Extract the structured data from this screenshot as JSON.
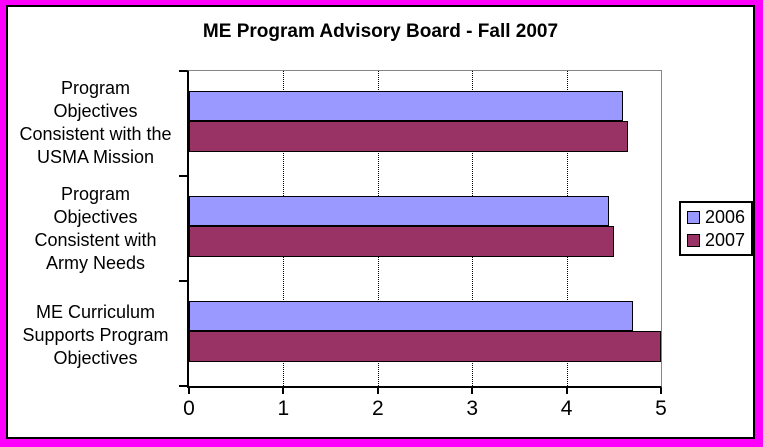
{
  "frame": {
    "border_color": "#FF00FF",
    "inner_border_color": "#000000",
    "background": "#FFFFFF"
  },
  "chart_data": {
    "type": "bar",
    "orientation": "horizontal",
    "title": "ME Program Advisory Board - Fall 2007",
    "categories": [
      "Program Objectives Consistent with the USMA Mission",
      "Program Objectives Consistent with Army Needs",
      "ME Curriculum Supports Program Objectives"
    ],
    "category_lines": [
      [
        "Program",
        "Objectives",
        "Consistent with the",
        "USMA Mission"
      ],
      [
        "Program",
        "Objectives",
        "Consistent with",
        "Army Needs"
      ],
      [
        "ME Curriculum",
        "Supports Program",
        "Objectives"
      ]
    ],
    "series": [
      {
        "name": "2006",
        "color": "#9999FF",
        "values": [
          4.6,
          4.45,
          4.7
        ]
      },
      {
        "name": "2007",
        "color": "#993366",
        "values": [
          4.65,
          4.5,
          5.0
        ]
      }
    ],
    "xlabel": "",
    "ylabel": "",
    "xlim": [
      0,
      5
    ],
    "x_ticks": [
      "0",
      "1",
      "2",
      "3",
      "4",
      "5"
    ],
    "grid": "vertical dotted gridlines at 1,2,3,4",
    "legend_position": "right",
    "legend_entries": [
      "2006",
      "2007"
    ],
    "plot_border_color": "#848484",
    "axis_color": "#000000",
    "bar_border_color": "#000000"
  }
}
